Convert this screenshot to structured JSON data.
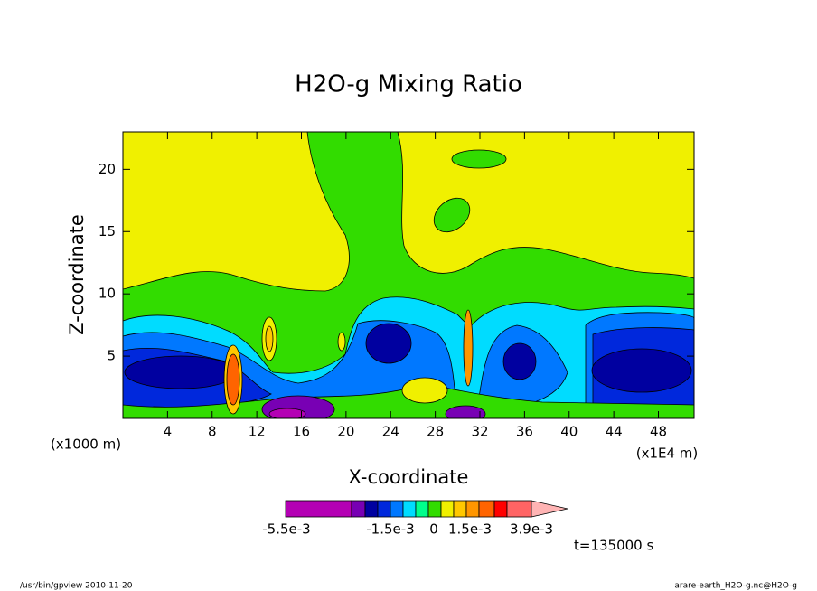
{
  "chart_data": {
    "type": "contour",
    "title": "H2O-g Mixing Ratio",
    "x_label": "X-coordinate",
    "y_label": "Z-coordinate",
    "x_unit": "(x1E4 m)",
    "y_unit": "(x1000 m)",
    "xlim": [
      0,
      51.2
    ],
    "xticks": [
      4,
      8,
      12,
      16,
      20,
      24,
      28,
      32,
      36,
      40,
      44,
      48
    ],
    "ylim": [
      0,
      23
    ],
    "yticks": [
      5,
      10,
      15,
      20
    ],
    "colorbar": {
      "colors": [
        "#b400b4",
        "#7800b4",
        "#0000a0",
        "#0028dc",
        "#0078ff",
        "#00dcff",
        "#00ff8c",
        "#32dc00",
        "#f0f000",
        "#ffc800",
        "#ff9600",
        "#ff6400",
        "#ff0000",
        "#ff6464",
        "#ffb4b4"
      ],
      "ticks": [
        {
          "value": -0.0055,
          "label": "-5.5e-3"
        },
        {
          "value": -0.0015,
          "label": "-1.5e-3"
        },
        0,
        {
          "value": 0.0015,
          "label": "1.5e-3"
        },
        {
          "value": 0.0039,
          "label": "3.9e-3"
        }
      ]
    },
    "annotation": "t=135000 s",
    "footer_left": "/usr/bin/gpview  2010-11-20",
    "footer_right": "arare-earth_H2O-g.nc@H2O-g"
  }
}
